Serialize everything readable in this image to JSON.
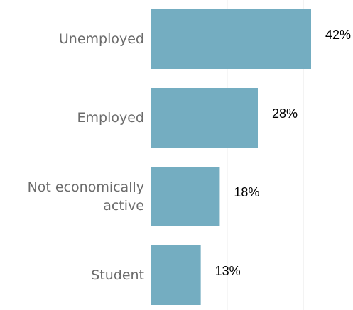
{
  "chart_data": {
    "type": "bar",
    "orientation": "horizontal",
    "categories": [
      "Unemployed",
      "Employed",
      "Not economically active",
      "Student"
    ],
    "category_lines": [
      [
        "Unemployed"
      ],
      [
        "Employed"
      ],
      [
        "Not economically",
        "active"
      ],
      [
        "Student"
      ]
    ],
    "values": [
      42,
      28,
      18,
      13
    ],
    "value_labels": [
      "42%",
      "28%",
      "18%",
      "13%"
    ],
    "unit": "%",
    "title": "",
    "xlabel": "",
    "ylabel": "",
    "xlim": [
      0,
      42
    ],
    "grid": true,
    "bar_color": "#74adc1"
  }
}
